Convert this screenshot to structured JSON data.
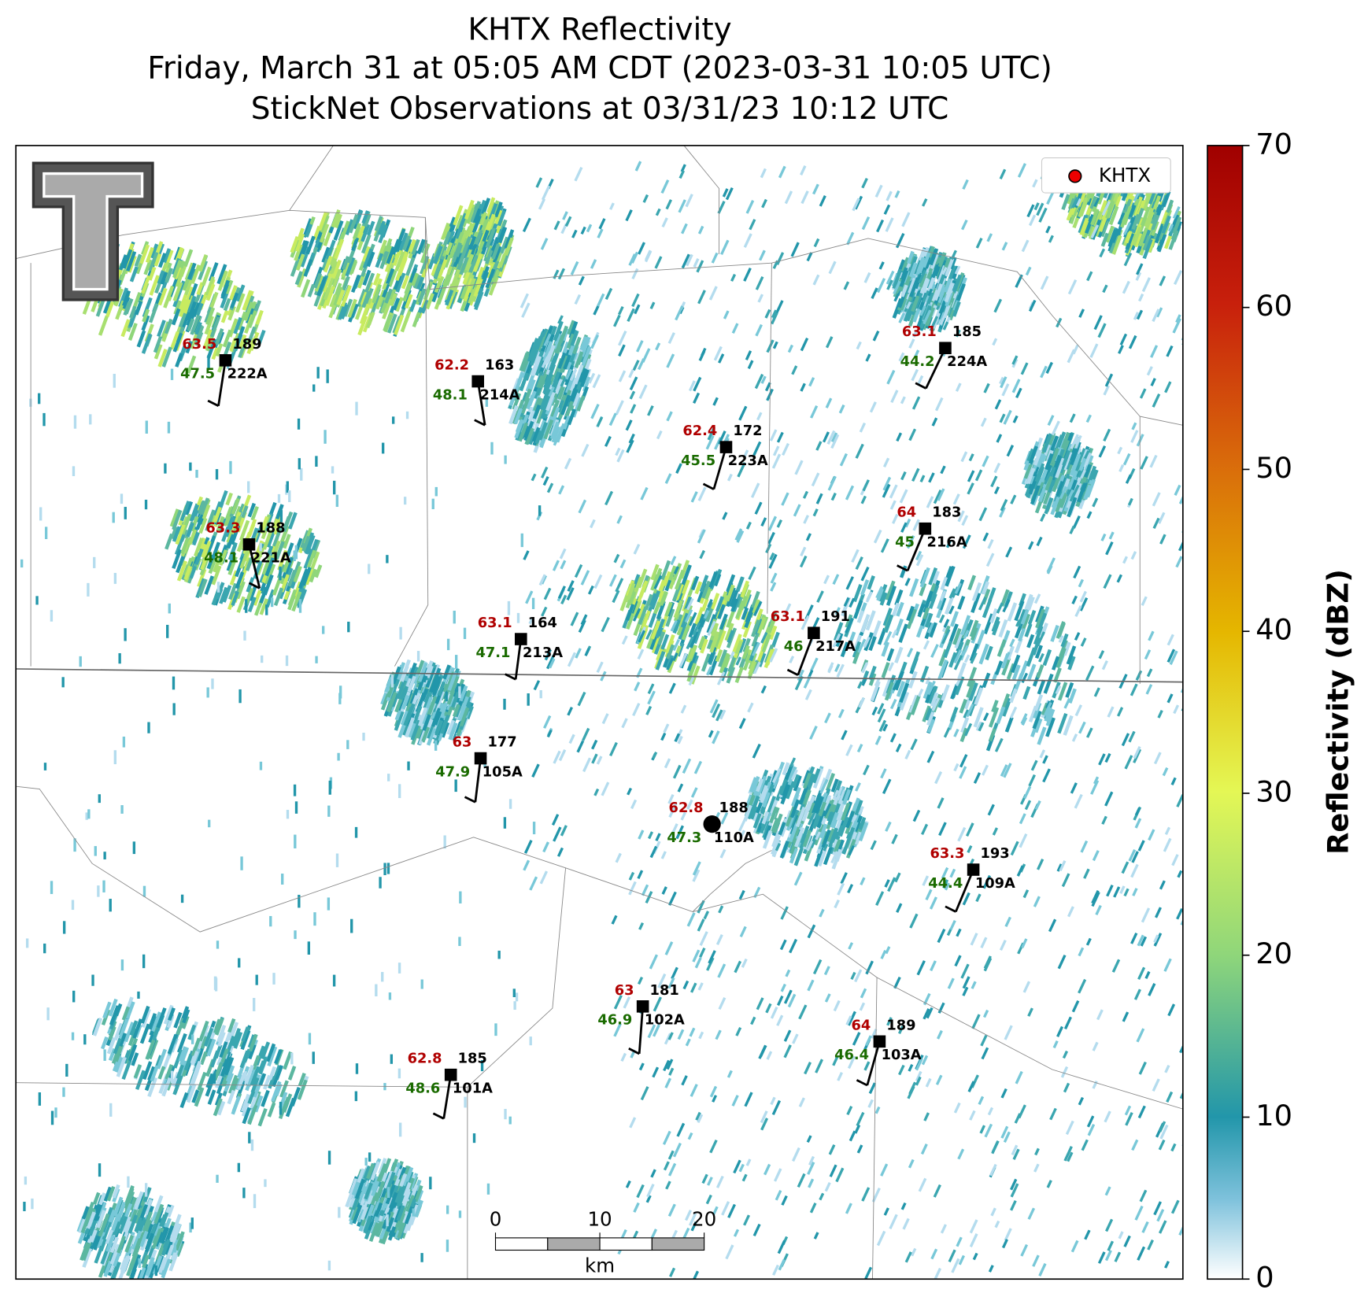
{
  "title": [
    "KHTX Reflectivity",
    "Friday, March 31 at 05:05 AM CDT (2023-03-31 10:05 UTC)",
    "StickNet Observations at 03/31/23 10:12 UTC"
  ],
  "legend": {
    "label": "KHTX"
  },
  "colorbar": {
    "label": "Reflectivity (dBZ)",
    "lim": [
      0,
      70
    ],
    "ticks": [
      0,
      10,
      20,
      30,
      40,
      50,
      60,
      70
    ]
  },
  "scale_bar": {
    "lim": [
      0,
      20
    ],
    "ticks": [
      0,
      10,
      20
    ],
    "unit": "km"
  },
  "stations": [
    {
      "id": "222A",
      "temperature": 63.5,
      "dewpoint": 47.5,
      "value": 189
    },
    {
      "id": "214A",
      "temperature": 62.2,
      "dewpoint": 48.1,
      "value": 163
    },
    {
      "id": "223A",
      "temperature": 62.4,
      "dewpoint": 45.5,
      "value": 172
    },
    {
      "id": "224A",
      "temperature": 63.1,
      "dewpoint": 44.2,
      "value": 185
    },
    {
      "id": "221A",
      "temperature": 63.3,
      "dewpoint": 48.1,
      "value": 188
    },
    {
      "id": "216A",
      "temperature": 64.0,
      "dewpoint": 45.0,
      "value": 183
    },
    {
      "id": "213A",
      "temperature": 63.1,
      "dewpoint": 47.1,
      "value": 164
    },
    {
      "id": "217A",
      "temperature": 63.1,
      "dewpoint": 46.0,
      "value": 191
    },
    {
      "id": "105A",
      "temperature": 63.0,
      "dewpoint": 47.9,
      "value": 177
    },
    {
      "id": "110A",
      "temperature": 62.8,
      "dewpoint": 47.3,
      "value": 188
    },
    {
      "id": "109A",
      "temperature": 63.3,
      "dewpoint": 44.4,
      "value": 193
    },
    {
      "id": "102A",
      "temperature": 63.0,
      "dewpoint": 46.9,
      "value": 181
    },
    {
      "id": "103A",
      "temperature": 64.0,
      "dewpoint": 46.4,
      "value": 189
    },
    {
      "id": "101A",
      "temperature": 62.8,
      "dewpoint": 48.6,
      "value": 185
    }
  ]
}
